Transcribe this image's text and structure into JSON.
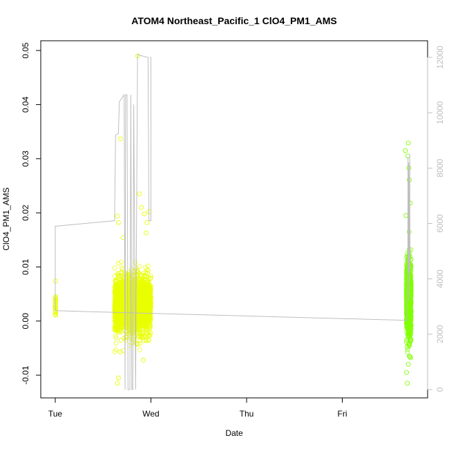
{
  "chart_data": {
    "type": "scatter",
    "title": "ATOM4 Northeast_Pacific_1 ClO4_PM1_AMS",
    "xlabel": "Date",
    "ylabel": "ClO4_PM1_AMS",
    "x_ticks": [
      "Tue",
      "Wed",
      "Thu",
      "Fri"
    ],
    "x_range_days": [
      0,
      3.85
    ],
    "ylim": [
      -0.0142,
      0.0518
    ],
    "y_ticks": [
      -0.01,
      0.0,
      0.01,
      0.02,
      0.03,
      0.04,
      0.05
    ],
    "y_tick_labels": [
      "-0.01",
      "0.00",
      "0.01",
      "0.02",
      "0.03",
      "0.04",
      "0.05"
    ],
    "y2lim": [
      -300,
      12600
    ],
    "y2_ticks": [
      0,
      2000,
      4000,
      6000,
      8000,
      10000,
      12000
    ],
    "y2_tick_labels": [
      "0",
      "2000",
      "4000",
      "6000",
      "8000",
      "10000",
      "12000"
    ],
    "grid": false,
    "colors": {
      "points_early": "#e8ff00",
      "points_late": "#80ff00",
      "altitude_line": "#bebebe",
      "right_axis": "#bebebe"
    },
    "series": [
      {
        "kind": "points",
        "clusters": [
          {
            "day_start": 0.0,
            "day_end": 0.005,
            "center": 0.003,
            "spread": 0.0012,
            "count": 25,
            "outliers": [
              [
                0.003,
                0.0074
              ]
            ]
          },
          {
            "day_start": 0.62,
            "day_end": 1.0,
            "center": 0.003,
            "spread": 0.0025,
            "count": 2500,
            "outliers": [
              [
                0.65,
                0.0194
              ],
              [
                0.66,
                0.0182
              ],
              [
                0.68,
                0.0337
              ],
              [
                0.86,
                0.049
              ],
              [
                0.9,
                0.021
              ],
              [
                0.93,
                0.0198
              ],
              [
                0.96,
                0.0182
              ],
              [
                0.98,
                0.0202
              ],
              [
                0.66,
                -0.0105
              ],
              [
                0.65,
                -0.0115
              ],
              [
                0.68,
                -0.0057
              ],
              [
                0.92,
                -0.0072
              ],
              [
                0.8,
                -0.004
              ],
              [
                0.74,
                -0.0035
              ],
              [
                0.88,
                0.0235
              ],
              [
                0.71,
                0.0154
              ],
              [
                0.95,
                0.0163
              ]
            ]
          },
          {
            "day_start": 3.67,
            "day_end": 3.72,
            "center": 0.004,
            "spread": 0.0035,
            "count": 900,
            "outliers": [
              [
                3.69,
                0.0329
              ],
              [
                3.685,
                0.0305
              ],
              [
                3.695,
                0.0283
              ],
              [
                3.7,
                0.0261
              ],
              [
                3.66,
                0.0315
              ],
              [
                3.68,
                -0.0115
              ],
              [
                3.672,
                -0.0095
              ],
              [
                3.69,
                -0.008
              ],
              [
                3.7,
                -0.0065
              ],
              [
                3.71,
                0.0218
              ],
              [
                3.665,
                0.0195
              ]
            ]
          }
        ]
      },
      {
        "kind": "line",
        "name": "",
        "points": [
          [
            0.0,
            5900
          ],
          [
            0.0,
            2850
          ],
          [
            0.0,
            2850
          ],
          [
            3.68,
            2500
          ],
          [
            3.685,
            4500
          ],
          [
            3.687,
            8400
          ],
          [
            3.69,
            4200
          ],
          [
            3.695,
            8200
          ],
          [
            3.7,
            3200
          ],
          [
            3.705,
            8500
          ],
          [
            3.708,
            4300
          ]
        ]
      }
    ]
  }
}
